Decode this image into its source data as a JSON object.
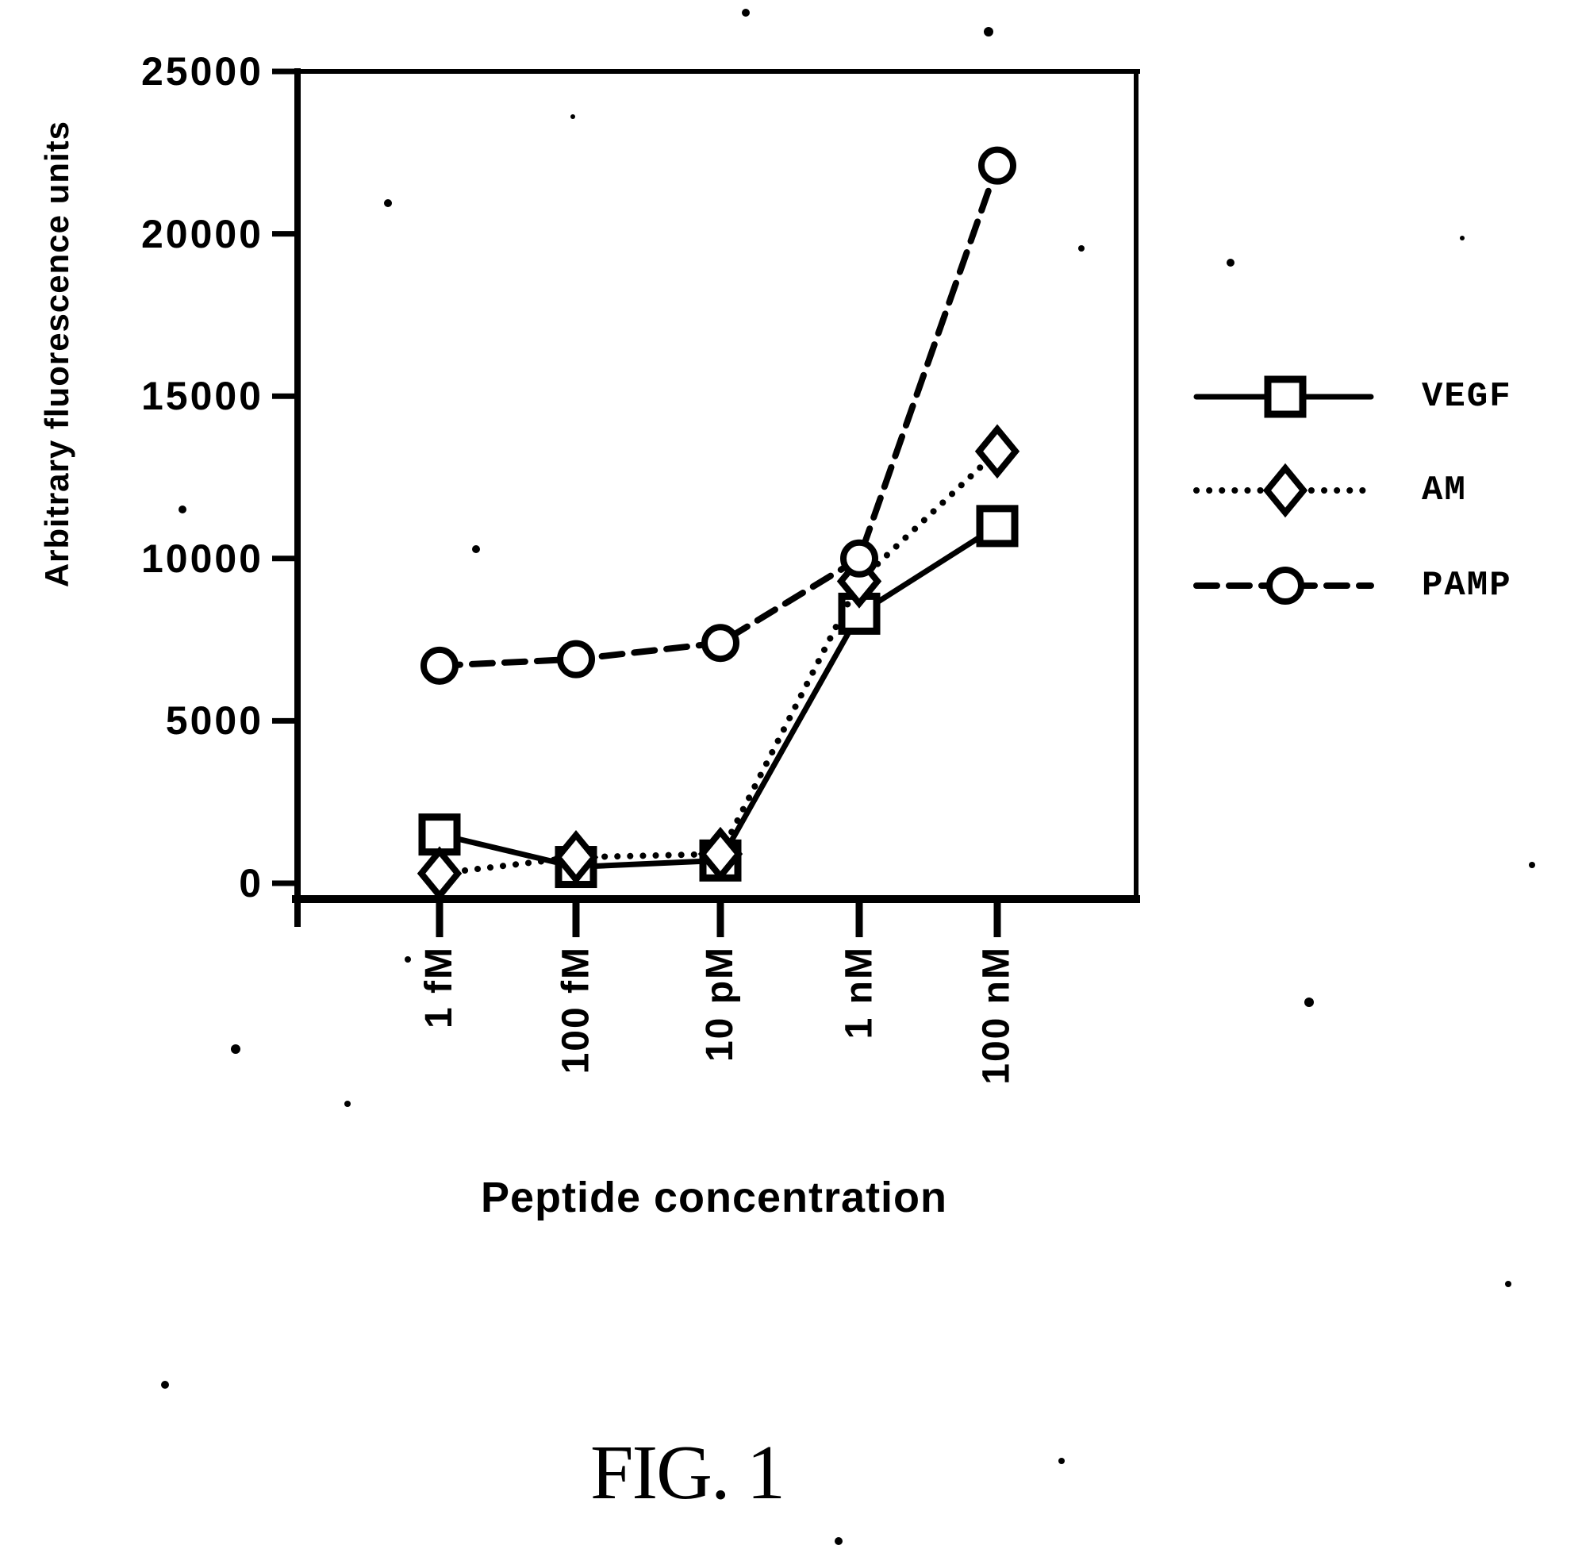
{
  "figure": {
    "caption": "FIG. 1"
  },
  "chart_data": {
    "type": "line",
    "title": "",
    "xlabel": "Peptide concentration",
    "ylabel": "Arbitrary fluorescence units",
    "categories": [
      "1 fM",
      "100 fM",
      "10 pM",
      "1 nM",
      "100 nM"
    ],
    "y_ticks": [
      0,
      5000,
      10000,
      15000,
      20000,
      25000
    ],
    "ylim": [
      0,
      25000
    ],
    "grid": false,
    "legend_position": "right-outside",
    "series": [
      {
        "name": "VEGF",
        "marker": "square",
        "line_style": "solid",
        "values": [
          1500,
          500,
          700,
          8300,
          11000
        ]
      },
      {
        "name": "AM",
        "marker": "diamond",
        "line_style": "dotted",
        "values": [
          300,
          800,
          900,
          9300,
          13300
        ]
      },
      {
        "name": "PAMP",
        "marker": "circle",
        "line_style": "dashed",
        "values": [
          6700,
          6900,
          7400,
          10000,
          22100
        ]
      }
    ]
  },
  "colors": {
    "ink": "#000000",
    "paper": "#ffffff"
  },
  "artifacts": {
    "specks": [
      [
        940,
        16,
        5
      ],
      [
        1246,
        40,
        6
      ],
      [
        722,
        147,
        3
      ],
      [
        489,
        256,
        5
      ],
      [
        1363,
        313,
        4
      ],
      [
        1551,
        331,
        5
      ],
      [
        1843,
        300,
        3
      ],
      [
        230,
        642,
        5
      ],
      [
        600,
        692,
        5
      ],
      [
        1931,
        1090,
        4
      ],
      [
        1650,
        1263,
        6
      ],
      [
        297,
        1322,
        6
      ],
      [
        514,
        1209,
        4
      ],
      [
        438,
        1391,
        4
      ],
      [
        208,
        1745,
        5
      ],
      [
        1338,
        1841,
        4
      ],
      [
        1901,
        1618,
        4
      ],
      [
        1057,
        1942,
        5
      ]
    ]
  }
}
